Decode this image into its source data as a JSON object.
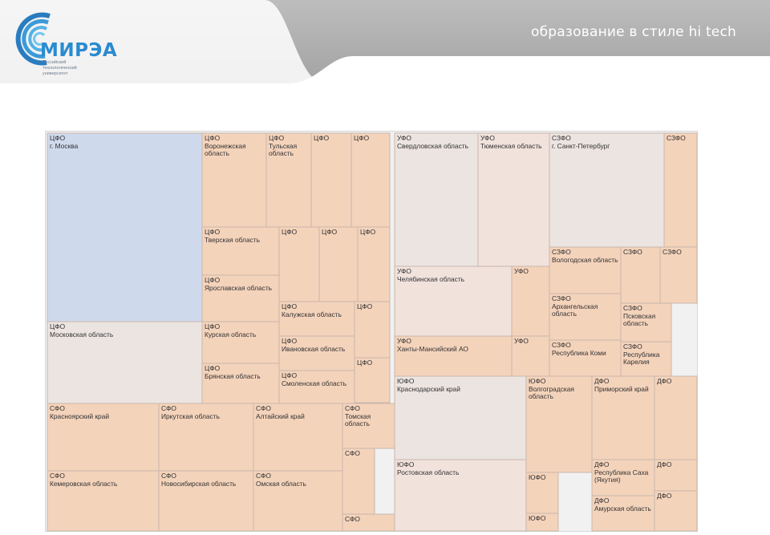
{
  "header": {
    "tagline": "образование в стиле hi tech",
    "logo_text": "МИРЭА",
    "logo_sub": [
      "Российский",
      "технологический",
      "университет"
    ]
  },
  "colors": {
    "header_gray": "#a9a9a9",
    "moscow": "#cfd9ec",
    "peach": "#f4d3bb",
    "light": "#ebe4e1",
    "pink": "#f1e2dc"
  },
  "chart_data": {
    "type": "treemap",
    "groups": [
      "ЦФО",
      "УФО",
      "СЗФО",
      "СФО",
      "ЮФО",
      "ДФО"
    ],
    "regions": [
      {
        "group": "ЦФО",
        "name": "г. Москва"
      },
      {
        "group": "ЦФО",
        "name": "Московская область"
      },
      {
        "group": "ЦФО",
        "name": "Воронежская область"
      },
      {
        "group": "ЦФО",
        "name": "Тульская область"
      },
      {
        "group": "ЦФО",
        "name": ""
      },
      {
        "group": "ЦФО",
        "name": ""
      },
      {
        "group": "ЦФО",
        "name": "Тверская область"
      },
      {
        "group": "ЦФО",
        "name": ""
      },
      {
        "group": "ЦФО",
        "name": ""
      },
      {
        "group": "ЦФО",
        "name": ""
      },
      {
        "group": "ЦФО",
        "name": "Ярославская область"
      },
      {
        "group": "ЦФО",
        "name": "Калужская область"
      },
      {
        "group": "ЦФО",
        "name": ""
      },
      {
        "group": "ЦФО",
        "name": "Курская область"
      },
      {
        "group": "ЦФО",
        "name": "Ивановская область"
      },
      {
        "group": "ЦФО",
        "name": ""
      },
      {
        "group": "ЦФО",
        "name": "Брянская область"
      },
      {
        "group": "ЦФО",
        "name": "Смоленская область"
      },
      {
        "group": "УФО",
        "name": "Свердловская область"
      },
      {
        "group": "УФО",
        "name": "Тюменская область"
      },
      {
        "group": "УФО",
        "name": "Челябинская область"
      },
      {
        "group": "УФО",
        "name": ""
      },
      {
        "group": "УФО",
        "name": "Ханты-Мансийский АО"
      },
      {
        "group": "УФО",
        "name": ""
      },
      {
        "group": "СЗФО",
        "name": "г. Санкт-Петербург"
      },
      {
        "group": "СЗФО",
        "name": ""
      },
      {
        "group": "СЗФО",
        "name": "Вологодская область"
      },
      {
        "group": "СЗФО",
        "name": ""
      },
      {
        "group": "СЗФО",
        "name": ""
      },
      {
        "group": "СЗФО",
        "name": "Архангельская область"
      },
      {
        "group": "СЗФО",
        "name": "Псковская область"
      },
      {
        "group": "СЗФО",
        "name": "Республика Коми"
      },
      {
        "group": "СЗФО",
        "name": "Республика Карелия"
      },
      {
        "group": "СФО",
        "name": "Красноярский край"
      },
      {
        "group": "СФО",
        "name": "Иркутская область"
      },
      {
        "group": "СФО",
        "name": "Алтайский край"
      },
      {
        "group": "СФО",
        "name": "Томская область"
      },
      {
        "group": "СФО",
        "name": ""
      },
      {
        "group": "СФО",
        "name": "Кемеровская область"
      },
      {
        "group": "СФО",
        "name": "Новосибирская область"
      },
      {
        "group": "СФО",
        "name": "Омская область"
      },
      {
        "group": "СФО",
        "name": ""
      },
      {
        "group": "ЮФО",
        "name": "Краснодарский край"
      },
      {
        "group": "ЮФО",
        "name": "Волгоградская область"
      },
      {
        "group": "ЮФО",
        "name": "Ростовская область"
      },
      {
        "group": "ЮФО",
        "name": ""
      },
      {
        "group": "ЮФО",
        "name": ""
      },
      {
        "group": "ДФО",
        "name": "Приморский край"
      },
      {
        "group": "ДФО",
        "name": ""
      },
      {
        "group": "ДФО",
        "name": "Республика Саха (Якутия)"
      },
      {
        "group": "ДФО",
        "name": ""
      },
      {
        "group": "ДФО",
        "name": "Амурская область"
      },
      {
        "group": "ДФО",
        "name": ""
      }
    ]
  }
}
